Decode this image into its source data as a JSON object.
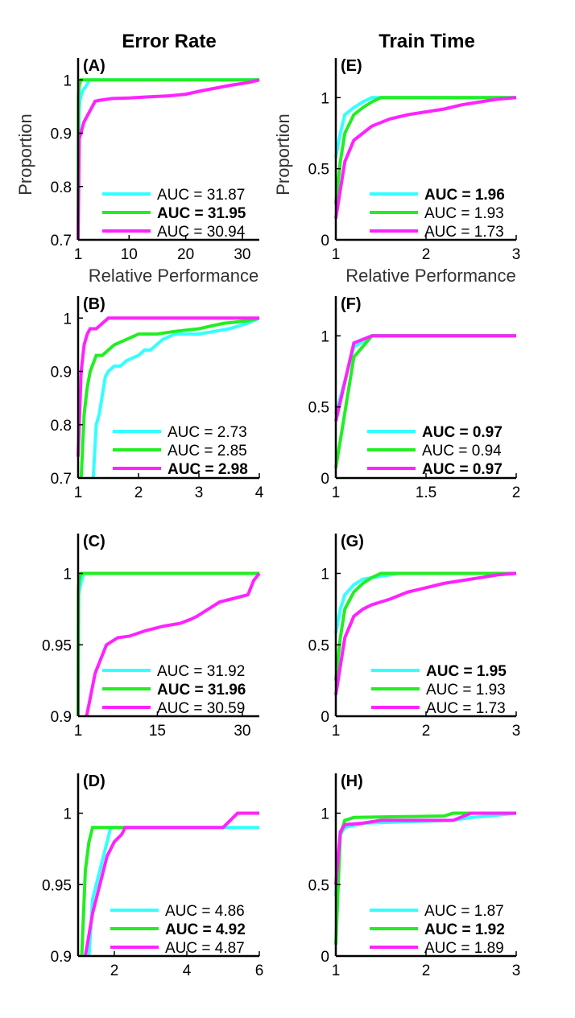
{
  "column_titles": {
    "left": "Error Rate",
    "right": "Train Time"
  },
  "colors": {
    "cyan": "#33ffff",
    "green": "#22ee22",
    "magenta": "#ff22ff",
    "axis": "#000000"
  },
  "chart_data": [
    {
      "id": "A",
      "panel_label": "(A)",
      "type": "line",
      "xlabel": "Relative Performance",
      "ylabel": "Proportion",
      "xlim": [
        1,
        33
      ],
      "ylim": [
        0.7,
        1.02
      ],
      "xticks": [
        1,
        10,
        20,
        30
      ],
      "yticks": [
        0.7,
        0.8,
        0.9,
        1
      ],
      "yticklabels": [
        "0.7",
        "0.8",
        "0.9",
        "1"
      ],
      "series": [
        {
          "color": "cyan",
          "auc_label": "AUC = 31.87",
          "bold": false,
          "x": [
            1,
            1.15,
            1.3,
            1.5,
            1.8,
            2.2,
            2.5,
            3,
            33
          ],
          "y": [
            0.7,
            0.94,
            0.96,
            0.97,
            0.98,
            0.985,
            0.99,
            1,
            1
          ]
        },
        {
          "color": "green",
          "auc_label": "AUC = 31.95",
          "bold": true,
          "x": [
            1,
            1.05,
            1.2,
            1.5,
            2,
            33
          ],
          "y": [
            0.7,
            0.97,
            0.99,
            1,
            1,
            1
          ]
        },
        {
          "color": "magenta",
          "auc_label": "AUC = 30.94",
          "bold": false,
          "x": [
            1,
            1.2,
            1.5,
            2,
            2.5,
            3,
            4,
            5,
            7,
            10,
            13,
            17,
            20,
            23,
            25,
            28,
            31,
            33
          ],
          "y": [
            0.7,
            0.89,
            0.9,
            0.92,
            0.93,
            0.94,
            0.96,
            0.962,
            0.965,
            0.966,
            0.968,
            0.97,
            0.973,
            0.98,
            0.984,
            0.99,
            0.995,
            1
          ]
        }
      ]
    },
    {
      "id": "B",
      "panel_label": "(B)",
      "type": "line",
      "xlim": [
        1,
        4
      ],
      "ylim": [
        0.7,
        1.02
      ],
      "xticks": [
        1,
        2,
        3,
        4
      ],
      "yticks": [
        0.7,
        0.8,
        0.9,
        1
      ],
      "yticklabels": [
        "0.7",
        "0.8",
        "0.9",
        "1"
      ],
      "series": [
        {
          "color": "cyan",
          "auc_label": "AUC = 2.73",
          "bold": false,
          "x": [
            1.25,
            1.3,
            1.35,
            1.45,
            1.5,
            1.6,
            1.7,
            1.8,
            2,
            2.1,
            2.2,
            2.4,
            2.6,
            3,
            3.5,
            3.8,
            4
          ],
          "y": [
            0.7,
            0.8,
            0.82,
            0.89,
            0.9,
            0.91,
            0.91,
            0.92,
            0.93,
            0.94,
            0.94,
            0.96,
            0.97,
            0.97,
            0.98,
            0.99,
            1
          ]
        },
        {
          "color": "green",
          "auc_label": "AUC = 2.85",
          "bold": false,
          "x": [
            1.05,
            1.1,
            1.15,
            1.2,
            1.3,
            1.4,
            1.6,
            1.8,
            2,
            2.3,
            2.6,
            3,
            3.4,
            3.8,
            4
          ],
          "y": [
            0.7,
            0.82,
            0.87,
            0.9,
            0.93,
            0.93,
            0.95,
            0.96,
            0.97,
            0.97,
            0.975,
            0.98,
            0.99,
            0.995,
            1
          ]
        },
        {
          "color": "magenta",
          "auc_label": "AUC = 2.98",
          "bold": true,
          "x": [
            1,
            1.05,
            1.1,
            1.15,
            1.2,
            1.3,
            1.4,
            1.5,
            4
          ],
          "y": [
            0.74,
            0.9,
            0.95,
            0.97,
            0.98,
            0.98,
            0.99,
            1,
            1
          ]
        }
      ]
    },
    {
      "id": "C",
      "panel_label": "(C)",
      "type": "line",
      "xlim": [
        1,
        33
      ],
      "ylim": [
        0.9,
        1.02
      ],
      "xticks": [
        1,
        15,
        30
      ],
      "yticks": [
        0.9,
        0.95,
        1
      ],
      "yticklabels": [
        "0.9",
        "0.95",
        "1"
      ],
      "series": [
        {
          "color": "cyan",
          "auc_label": "AUC = 31.92",
          "bold": false,
          "x": [
            1,
            1.1,
            1.3,
            1.6,
            2,
            33
          ],
          "y": [
            0.9,
            0.985,
            0.99,
            0.995,
            1,
            1
          ]
        },
        {
          "color": "green",
          "auc_label": "AUC = 31.96",
          "bold": true,
          "x": [
            1,
            1.05,
            1.2,
            1.5,
            33
          ],
          "y": [
            0.9,
            0.99,
            0.995,
            1,
            1
          ]
        },
        {
          "color": "magenta",
          "auc_label": "AUC = 30.59",
          "bold": false,
          "x": [
            2.5,
            3,
            4,
            5,
            6,
            8,
            10,
            13,
            16,
            19,
            21,
            22,
            24,
            26,
            28,
            31,
            32,
            33
          ],
          "y": [
            0.9,
            0.91,
            0.93,
            0.94,
            0.95,
            0.955,
            0.956,
            0.96,
            0.963,
            0.965,
            0.968,
            0.97,
            0.975,
            0.98,
            0.982,
            0.985,
            0.995,
            1
          ]
        }
      ]
    },
    {
      "id": "D",
      "panel_label": "(D)",
      "type": "line",
      "xlim": [
        1,
        6
      ],
      "ylim": [
        0.9,
        1.02
      ],
      "xticks": [
        2,
        4,
        6
      ],
      "yticks": [
        0.9,
        0.95,
        1
      ],
      "yticklabels": [
        "0.9",
        "0.95",
        "1"
      ],
      "series": [
        {
          "color": "cyan",
          "auc_label": "AUC = 4.86",
          "bold": false,
          "x": [
            1.3,
            1.4,
            1.5,
            1.6,
            1.7,
            1.8,
            1.9,
            2,
            6
          ],
          "y": [
            0.9,
            0.94,
            0.95,
            0.96,
            0.97,
            0.98,
            0.99,
            0.99,
            0.99
          ]
        },
        {
          "color": "green",
          "auc_label": "AUC = 4.92",
          "bold": true,
          "x": [
            1.1,
            1.2,
            1.3,
            1.4,
            1.5,
            2.3
          ],
          "y": [
            0.9,
            0.96,
            0.98,
            0.99,
            0.99,
            0.99
          ]
        },
        {
          "color": "magenta",
          "auc_label": "AUC = 4.87",
          "bold": false,
          "x": [
            1.2,
            1.4,
            1.6,
            1.8,
            2,
            2.2,
            2.3,
            5,
            5.4,
            6
          ],
          "y": [
            0.9,
            0.93,
            0.95,
            0.97,
            0.98,
            0.985,
            0.99,
            0.99,
            1,
            1
          ]
        }
      ]
    },
    {
      "id": "E",
      "panel_label": "(E)",
      "type": "line",
      "xlabel": "Relative Performance",
      "ylabel": "Proportion",
      "xlim": [
        1,
        3
      ],
      "ylim": [
        0,
        1.2
      ],
      "xticks": [
        1,
        2,
        3
      ],
      "yticks": [
        0,
        0.5,
        1
      ],
      "yticklabels": [
        "0",
        "0.5",
        "1"
      ],
      "series": [
        {
          "color": "cyan",
          "auc_label": "AUC = 1.96",
          "bold": true,
          "x": [
            1,
            1.05,
            1.1,
            1.2,
            1.3,
            1.4,
            3
          ],
          "y": [
            0.58,
            0.75,
            0.88,
            0.93,
            0.97,
            1,
            1
          ]
        },
        {
          "color": "green",
          "auc_label": "AUC = 1.93",
          "bold": false,
          "x": [
            1,
            1.05,
            1.1,
            1.2,
            1.3,
            1.4,
            1.5,
            3
          ],
          "y": [
            0.25,
            0.55,
            0.75,
            0.88,
            0.93,
            0.97,
            1,
            1
          ]
        },
        {
          "color": "magenta",
          "auc_label": "AUC = 1.73",
          "bold": false,
          "x": [
            1,
            1.05,
            1.1,
            1.2,
            1.3,
            1.4,
            1.6,
            1.8,
            2,
            2.2,
            2.4,
            2.6,
            2.8,
            3
          ],
          "y": [
            0.15,
            0.35,
            0.55,
            0.7,
            0.75,
            0.8,
            0.85,
            0.88,
            0.9,
            0.92,
            0.95,
            0.97,
            0.99,
            1
          ]
        }
      ]
    },
    {
      "id": "F",
      "panel_label": "(F)",
      "type": "line",
      "xlim": [
        1,
        2
      ],
      "ylim": [
        0,
        1.2
      ],
      "xticks": [
        1,
        1.5,
        2
      ],
      "yticks": [
        0,
        0.5,
        1
      ],
      "yticklabels": [
        "0",
        "0.5",
        "1"
      ],
      "series": [
        {
          "color": "cyan",
          "auc_label": "AUC = 0.97",
          "bold": true,
          "x": [
            1,
            1.1,
            1.2,
            2
          ],
          "y": [
            0.45,
            0.92,
            1,
            1
          ]
        },
        {
          "color": "green",
          "auc_label": "AUC = 0.94",
          "bold": false,
          "x": [
            1,
            1.1,
            1.2,
            2
          ],
          "y": [
            0.07,
            0.85,
            1,
            1
          ]
        },
        {
          "color": "magenta",
          "auc_label": "AUC = 0.97",
          "bold": true,
          "x": [
            1,
            1.1,
            1.2,
            2
          ],
          "y": [
            0.4,
            0.95,
            1,
            1
          ]
        }
      ]
    },
    {
      "id": "G",
      "panel_label": "(G)",
      "type": "line",
      "xlim": [
        1,
        3
      ],
      "ylim": [
        0,
        1.2
      ],
      "xticks": [
        1,
        2,
        3
      ],
      "yticks": [
        0,
        0.5,
        1
      ],
      "yticklabels": [
        "0",
        "0.5",
        "1"
      ],
      "series": [
        {
          "color": "cyan",
          "auc_label": "AUC = 1.95",
          "bold": true,
          "x": [
            1,
            1.05,
            1.1,
            1.2,
            1.3,
            1.5,
            1.7,
            3
          ],
          "y": [
            0.58,
            0.75,
            0.85,
            0.92,
            0.96,
            0.98,
            1,
            1
          ]
        },
        {
          "color": "green",
          "auc_label": "AUC = 1.93",
          "bold": false,
          "x": [
            1,
            1.05,
            1.1,
            1.2,
            1.3,
            1.4,
            1.5,
            3
          ],
          "y": [
            0.25,
            0.55,
            0.75,
            0.87,
            0.93,
            0.97,
            1,
            1
          ]
        },
        {
          "color": "magenta",
          "auc_label": "AUC = 1.73",
          "bold": false,
          "x": [
            1,
            1.05,
            1.1,
            1.2,
            1.3,
            1.4,
            1.6,
            1.8,
            2,
            2.2,
            2.4,
            2.6,
            2.8,
            3
          ],
          "y": [
            0.15,
            0.35,
            0.55,
            0.7,
            0.75,
            0.78,
            0.82,
            0.87,
            0.9,
            0.93,
            0.95,
            0.97,
            0.99,
            1
          ]
        }
      ]
    },
    {
      "id": "H",
      "panel_label": "(H)",
      "type": "line",
      "xlim": [
        1,
        3
      ],
      "ylim": [
        0,
        1.2
      ],
      "xticks": [
        1,
        2,
        3
      ],
      "yticks": [
        0,
        0.5,
        1
      ],
      "yticklabels": [
        "0",
        "0.5",
        "1"
      ],
      "series": [
        {
          "color": "cyan",
          "auc_label": "AUC = 1.87",
          "bold": false,
          "x": [
            1,
            1.05,
            1.1,
            1.3,
            2.3,
            2.5,
            2.7,
            3
          ],
          "y": [
            0.42,
            0.85,
            0.9,
            0.93,
            0.95,
            0.97,
            0.98,
            1
          ]
        },
        {
          "color": "green",
          "auc_label": "AUC = 1.92",
          "bold": true,
          "x": [
            1,
            1.05,
            1.1,
            1.2,
            2.2,
            2.3,
            3
          ],
          "y": [
            0.08,
            0.85,
            0.95,
            0.97,
            0.98,
            1,
            1
          ]
        },
        {
          "color": "magenta",
          "auc_label": "AUC = 1.89",
          "bold": false,
          "x": [
            1,
            1.05,
            1.1,
            1.3,
            1.5,
            2.3,
            2.5,
            3
          ],
          "y": [
            0.5,
            0.87,
            0.92,
            0.93,
            0.95,
            0.95,
            1,
            1
          ]
        }
      ]
    }
  ]
}
